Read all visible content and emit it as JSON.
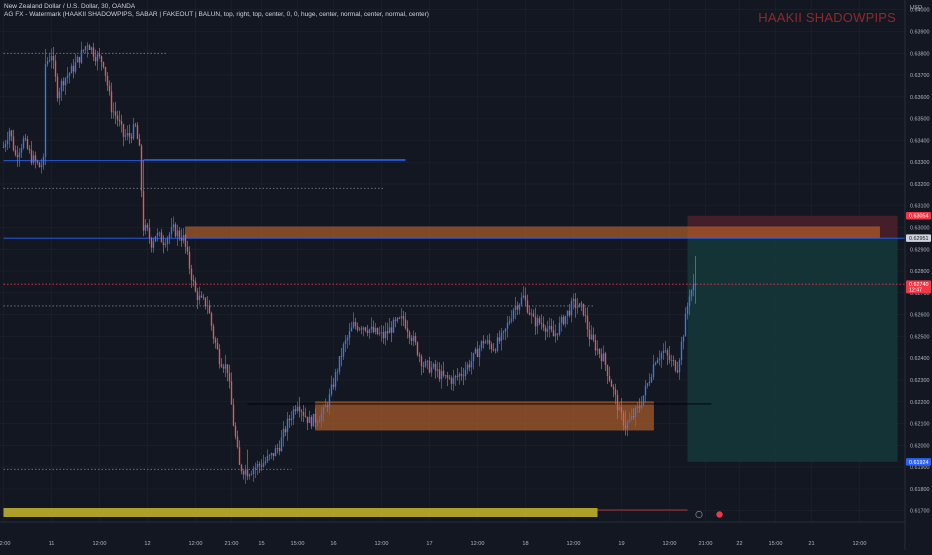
{
  "header": {
    "symbol_title": "New Zealand Dollar / U.S. Dollar, 30, OANDA",
    "indicator_line": "AG FX - Watermark (HAAKII SHADOWPIPS, SABAR | FAKEOUT | BALUN, top, right, top, center, 0, 0, huge, center, normal, center, normal, center)"
  },
  "watermark": "HAAKII SHADOWPIPS",
  "price_axis": {
    "currency": "USD",
    "ticks": [
      "0.64000",
      "0.63900",
      "0.63800",
      "0.63700",
      "0.63600",
      "0.63500",
      "0.63400",
      "0.63300",
      "0.63200",
      "0.63100",
      "0.63000",
      "0.62900",
      "0.62800",
      "0.62700",
      "0.62600",
      "0.62500",
      "0.62400",
      "0.62300",
      "0.62200",
      "0.62100",
      "0.62000",
      "0.61900",
      "0.61800",
      "0.61700"
    ],
    "tags": [
      {
        "name": "stop-loss-tag",
        "value": 0.63054,
        "text": "0.63054",
        "bg": "#f23645"
      },
      {
        "name": "ref-line-tag",
        "value": 0.62951,
        "text": "0.62951",
        "bg": "#d1d4dc",
        "fg": "#131722"
      },
      {
        "name": "last-price-tag",
        "value": 0.6274,
        "text": "0.62740",
        "sub": "12:47",
        "bg": "#f23645"
      },
      {
        "name": "take-profit-tag",
        "value": 0.61924,
        "text": "0.61924",
        "bg": "#2962ff"
      }
    ]
  },
  "time_axis": {
    "labels": [
      {
        "t": "12:00",
        "i": 0
      },
      {
        "t": "11",
        "i": 24
      },
      {
        "t": "12:00",
        "i": 48
      },
      {
        "t": "12",
        "i": 72
      },
      {
        "t": "12:00",
        "i": 96
      },
      {
        "t": "21:00",
        "i": 114
      },
      {
        "t": "15",
        "i": 129
      },
      {
        "t": "15:00",
        "i": 147
      },
      {
        "t": "16",
        "i": 165
      },
      {
        "t": "12:00",
        "i": 189
      },
      {
        "t": "17",
        "i": 213
      },
      {
        "t": "12:00",
        "i": 237
      },
      {
        "t": "18",
        "i": 261
      },
      {
        "t": "12:00",
        "i": 285
      },
      {
        "t": "19",
        "i": 309
      },
      {
        "t": "12:00",
        "i": 333
      },
      {
        "t": "21:00",
        "i": 351
      },
      {
        "t": "22",
        "i": 368
      },
      {
        "t": "15:00",
        "i": 386
      },
      {
        "t": "21",
        "i": 404
      },
      {
        "t": "12:00",
        "i": 428
      }
    ]
  },
  "colors": {
    "background": "#131722",
    "up": "#3179f5",
    "down": "#e0585a",
    "grid": "#1e222d",
    "zone_fill": "#c2662a",
    "zone_edge": "#e07b39",
    "stop_fill": "#4a1f2a",
    "target_fill": "#15363a",
    "blue_line": "#2962ff",
    "purple_line": "#7b3fb0",
    "axis_text": "#b2b5be",
    "session_bar": "#c8b92c"
  },
  "chart_data": {
    "type": "candlestick",
    "interval": "30",
    "symbol": "NZDUSD",
    "ylim": [
      0.6168,
      0.64
    ],
    "price_path": [
      [
        0,
        0.6337
      ],
      [
        3,
        0.6345
      ],
      [
        6,
        0.6333
      ],
      [
        10,
        0.634
      ],
      [
        14,
        0.6332
      ],
      [
        18,
        0.6328
      ],
      [
        20,
        0.633
      ],
      [
        21,
        0.6375
      ],
      [
        24,
        0.638
      ],
      [
        27,
        0.6362
      ],
      [
        30,
        0.6368
      ],
      [
        34,
        0.6372
      ],
      [
        38,
        0.6378
      ],
      [
        42,
        0.6385
      ],
      [
        46,
        0.6379
      ],
      [
        50,
        0.6376
      ],
      [
        54,
        0.6355
      ],
      [
        57,
        0.635
      ],
      [
        60,
        0.6342
      ],
      [
        63,
        0.6342
      ],
      [
        66,
        0.6346
      ],
      [
        68,
        0.6335
      ],
      [
        70,
        0.63
      ],
      [
        72,
        0.6298
      ],
      [
        74,
        0.6293
      ],
      [
        76,
        0.6297
      ],
      [
        80,
        0.6294
      ],
      [
        85,
        0.6299
      ],
      [
        90,
        0.6295
      ],
      [
        93,
        0.6282
      ],
      [
        96,
        0.627
      ],
      [
        99,
        0.6266
      ],
      [
        102,
        0.6265
      ],
      [
        105,
        0.625
      ],
      [
        108,
        0.624
      ],
      [
        112,
        0.6235
      ],
      [
        115,
        0.621
      ],
      [
        118,
        0.619
      ],
      [
        122,
        0.6188
      ],
      [
        126,
        0.619
      ],
      [
        130,
        0.6192
      ],
      [
        134,
        0.6195
      ],
      [
        138,
        0.62
      ],
      [
        142,
        0.621
      ],
      [
        147,
        0.622
      ],
      [
        150,
        0.6215
      ],
      [
        153,
        0.6211
      ],
      [
        156,
        0.6212
      ],
      [
        160,
        0.6215
      ],
      [
        163,
        0.6222
      ],
      [
        166,
        0.6232
      ],
      [
        170,
        0.6245
      ],
      [
        175,
        0.6255
      ],
      [
        180,
        0.6255
      ],
      [
        185,
        0.6252
      ],
      [
        190,
        0.625
      ],
      [
        195,
        0.6255
      ],
      [
        200,
        0.6258
      ],
      [
        205,
        0.6248
      ],
      [
        210,
        0.6237
      ],
      [
        215,
        0.6235
      ],
      [
        220,
        0.6231
      ],
      [
        225,
        0.623
      ],
      [
        230,
        0.6234
      ],
      [
        235,
        0.624
      ],
      [
        240,
        0.6248
      ],
      [
        245,
        0.6245
      ],
      [
        250,
        0.625
      ],
      [
        255,
        0.6263
      ],
      [
        260,
        0.6268
      ],
      [
        265,
        0.6257
      ],
      [
        270,
        0.6256
      ],
      [
        275,
        0.625
      ],
      [
        280,
        0.6258
      ],
      [
        285,
        0.6265
      ],
      [
        290,
        0.6262
      ],
      [
        293,
        0.625
      ],
      [
        297,
        0.6244
      ],
      [
        300,
        0.624
      ],
      [
        304,
        0.6228
      ],
      [
        308,
        0.6215
      ],
      [
        311,
        0.6209
      ],
      [
        314,
        0.6212
      ],
      [
        318,
        0.6218
      ],
      [
        322,
        0.6228
      ],
      [
        326,
        0.624
      ],
      [
        330,
        0.6243
      ],
      [
        334,
        0.6238
      ],
      [
        337,
        0.6236
      ],
      [
        340,
        0.6252
      ],
      [
        343,
        0.627
      ],
      [
        346,
        0.6274
      ]
    ],
    "highlights": [
      {
        "i": 21,
        "h": 0.6382,
        "l": 0.633
      },
      {
        "i": 42,
        "h": 0.6385,
        "l": 0.6378
      },
      {
        "i": 70,
        "h": 0.6331,
        "l": 0.6296
      },
      {
        "i": 122,
        "h": 0.6198,
        "l": 0.6184
      },
      {
        "i": 311,
        "h": 0.6216,
        "l": 0.6205
      },
      {
        "i": 346,
        "h": 0.6287,
        "l": 0.6265
      }
    ],
    "lines": [
      {
        "name": "blue-level-upper",
        "y": 0.63307,
        "i1": 0,
        "i2": 201,
        "color": "#2962ff",
        "dash": false
      },
      {
        "name": "purple-level",
        "y": 0.63312,
        "i1": 70,
        "i2": 201,
        "color": "#7b3fb0",
        "dash": false
      },
      {
        "name": "blue-level-mid",
        "y": 0.62951,
        "i1": 0,
        "i2": 468,
        "color": "#2962ff",
        "dash": false
      },
      {
        "name": "dotted-level-top",
        "y": 0.638,
        "i1": 0,
        "i2": 82,
        "color": "#787b86",
        "dash": true
      },
      {
        "name": "dotted-level-2",
        "y": 0.6318,
        "i1": 0,
        "i2": 190,
        "color": "#787b86",
        "dash": true
      },
      {
        "name": "dotted-level-3",
        "y": 0.6264,
        "i1": 0,
        "i2": 295,
        "color": "#787b86",
        "dash": true
      },
      {
        "name": "dotted-level-bottom",
        "y": 0.6189,
        "i1": 0,
        "i2": 144,
        "color": "#787b86",
        "dash": true
      },
      {
        "name": "black-level",
        "y": 0.6219,
        "i1": 122,
        "i2": 354,
        "color": "#000000",
        "dash": false
      },
      {
        "name": "last-price-line",
        "y": 0.6274,
        "i1": 0,
        "i2": 468,
        "color": "#f23645",
        "dash": true
      }
    ],
    "zones": [
      {
        "name": "resistance-zone",
        "y1": 0.63003,
        "y2": 0.62951,
        "i1": 91,
        "i2": 438
      },
      {
        "name": "support-zone",
        "y1": 0.622,
        "y2": 0.6207,
        "i1": 156,
        "i2": 325
      }
    ],
    "position": {
      "entry": 0.62951,
      "stop": 0.63054,
      "target": 0.61924,
      "i1": 342,
      "i2": 447
    },
    "session_bar": {
      "i1": 0,
      "i2": 297
    }
  }
}
